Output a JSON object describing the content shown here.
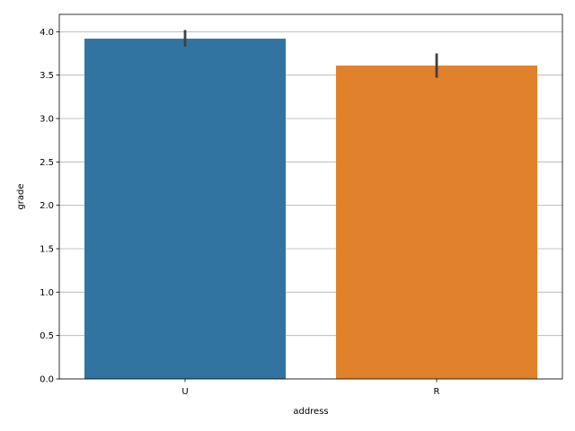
{
  "chart_data": {
    "type": "bar",
    "title": "",
    "xlabel": "address",
    "ylabel": "grade",
    "categories": [
      "U",
      "R"
    ],
    "values": [
      3.92,
      3.61
    ],
    "error_bars": [
      [
        3.83,
        4.02
      ],
      [
        3.47,
        3.75
      ]
    ],
    "colors": [
      "#3274a1",
      "#e1812c"
    ],
    "ylim": [
      0,
      4.2
    ],
    "yticks": [
      0.0,
      0.5,
      1.0,
      1.5,
      2.0,
      2.5,
      3.0,
      3.5,
      4.0
    ],
    "ytick_labels": [
      "0.0",
      "0.5",
      "1.0",
      "1.5",
      "2.0",
      "2.5",
      "3.0",
      "3.5",
      "4.0"
    ],
    "grid": "horizontal",
    "legend": "none",
    "error_bar_color": "#3f3f3f",
    "grid_color": "#b0b0b0"
  }
}
